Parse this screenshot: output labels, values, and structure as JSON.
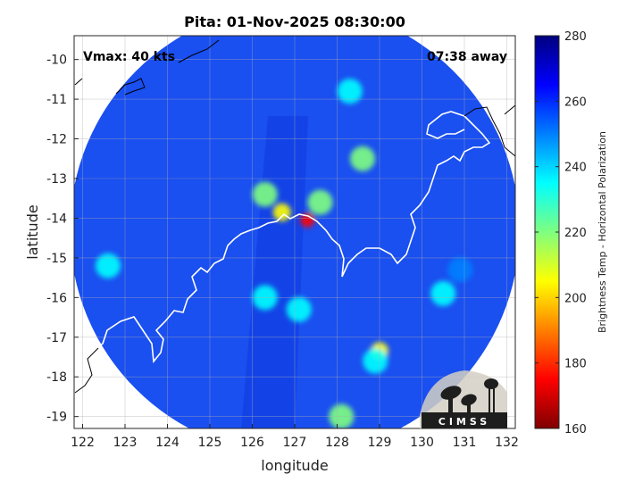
{
  "chart_data": {
    "type": "heatmap",
    "title": "Pita: 01-Nov-2025 08:30:00",
    "xlabel": "longitude",
    "ylabel": "latitude",
    "xlim": [
      121.8,
      132.2
    ],
    "ylim": [
      -19.3,
      -9.4
    ],
    "x_ticks": [
      122,
      123,
      124,
      125,
      126,
      127,
      128,
      129,
      130,
      131,
      132
    ],
    "y_ticks": [
      -10,
      -11,
      -12,
      -13,
      -14,
      -15,
      -16,
      -17,
      -18,
      -19
    ],
    "grid": true,
    "annotations": {
      "vmax": "Vmax: 40 kts",
      "time_away": "07:38 away"
    },
    "colorbar": {
      "label": "Brightness Temp - Horizontal Polarization",
      "range": [
        160,
        280
      ],
      "ticks": [
        160,
        180,
        200,
        220,
        240,
        260,
        280
      ],
      "colormap": "jet",
      "colors": [
        "#7f0000",
        "#ff0000",
        "#ff7f00",
        "#ffff00",
        "#7fff7f",
        "#00ffff",
        "#007fff",
        "#0000ff",
        "#00007f"
      ]
    },
    "swath": {
      "center": [
        127.0,
        -14.3
      ],
      "radius_deg": 5.3,
      "background_value": 262,
      "features": [
        {
          "x": 127.3,
          "y": -14.05,
          "value": 170
        },
        {
          "x": 126.7,
          "y": -13.85,
          "value": 200
        },
        {
          "x": 127.6,
          "y": -13.6,
          "value": 225
        },
        {
          "x": 126.3,
          "y": -13.4,
          "value": 215
        },
        {
          "x": 128.6,
          "y": -12.5,
          "value": 220
        },
        {
          "x": 129.0,
          "y": -17.35,
          "value": 200
        },
        {
          "x": 128.9,
          "y": -17.6,
          "value": 232
        },
        {
          "x": 126.3,
          "y": -16.0,
          "value": 230
        },
        {
          "x": 127.1,
          "y": -16.3,
          "value": 228
        },
        {
          "x": 130.5,
          "y": -15.9,
          "value": 240
        },
        {
          "x": 130.9,
          "y": -15.3,
          "value": 245
        },
        {
          "x": 128.1,
          "y": -19.0,
          "value": 215
        },
        {
          "x": 128.3,
          "y": -10.8,
          "value": 240
        },
        {
          "x": 122.6,
          "y": -15.2,
          "value": 240
        }
      ]
    }
  },
  "logo": {
    "text": "CIMSS"
  },
  "icons": {
    "logo": "cimss-logo-icon"
  }
}
